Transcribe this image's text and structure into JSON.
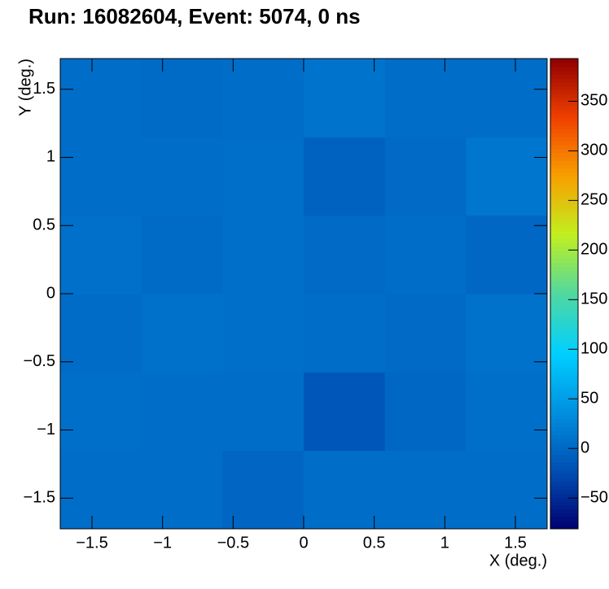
{
  "chart_data": {
    "type": "heatmap",
    "title": "Run: 16082604, Event: 5074, 0 ns",
    "x_label": "X (deg.)",
    "y_label": "Y (deg.)",
    "xbins": [
      -1.725,
      -1.15,
      -0.575,
      0,
      0.575,
      1.15,
      1.725
    ],
    "ybins": [
      -1.725,
      -1.15,
      -0.575,
      0,
      0.575,
      1.15,
      1.725
    ],
    "z": [
      [
        5,
        5,
        -2,
        6,
        6,
        6
      ],
      [
        7,
        6,
        6,
        -15,
        0,
        7
      ],
      [
        4,
        9,
        7,
        6,
        2,
        10
      ],
      [
        8,
        3,
        7,
        2,
        5,
        0
      ],
      [
        5,
        5,
        7,
        -5,
        2,
        13
      ],
      [
        5,
        3,
        5,
        12,
        5,
        5
      ]
    ],
    "xlim": [
      -1.725,
      1.725
    ],
    "ylim": [
      -1.725,
      1.725
    ],
    "zlim": [
      -81,
      393
    ],
    "xticks": [
      {
        "value": -1.5,
        "label": "−1.5"
      },
      {
        "value": -1,
        "label": "−1"
      },
      {
        "value": -0.5,
        "label": "−0.5"
      },
      0,
      0.5,
      1,
      1.5
    ],
    "yticks": [
      {
        "value": -1.5,
        "label": "−1.5"
      },
      {
        "value": -1,
        "label": "−1"
      },
      {
        "value": -0.5,
        "label": "−0.5"
      },
      0,
      0.5,
      1,
      1.5
    ],
    "zticks": [
      {
        "value": -50,
        "label": "−50"
      },
      0,
      50,
      100,
      150,
      200,
      250,
      300,
      350
    ],
    "colorscale": [
      "#000070",
      "#0050b4",
      "#0090e0",
      "#00d0ff",
      "#50d8a0",
      "#c0f020",
      "#f8a000",
      "#f04000",
      "#900000"
    ]
  }
}
